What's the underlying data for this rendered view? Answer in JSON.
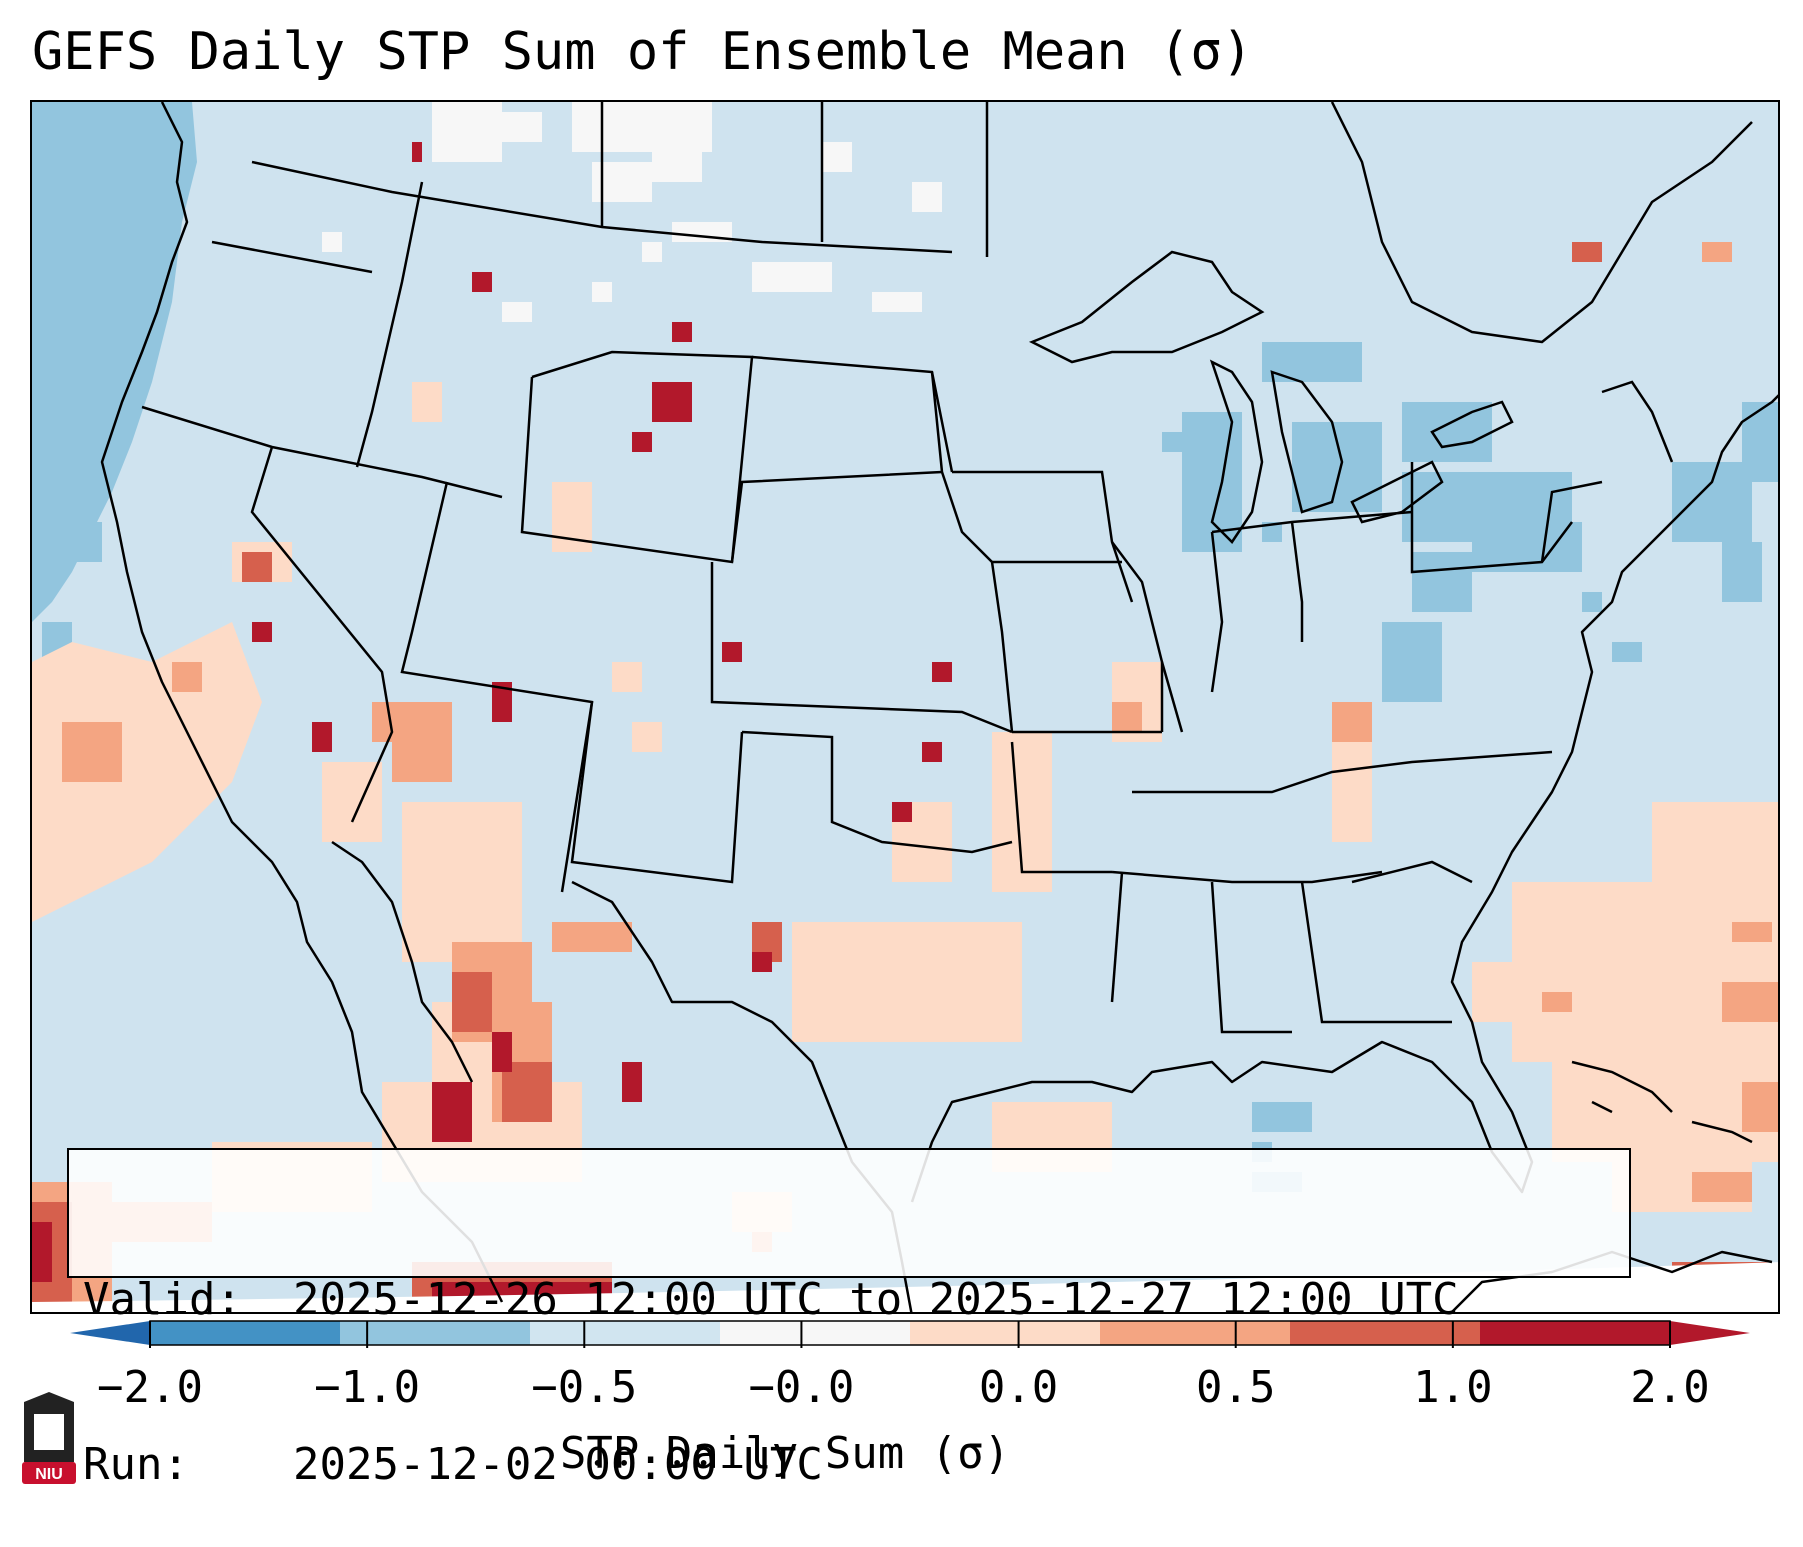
{
  "title": "GEFS Daily STP Sum of Ensemble Mean (σ)",
  "info": {
    "valid_label": "Valid:",
    "valid_value": "2025-12-26 12:00 UTC to 2025-12-27 12:00 UTC",
    "run_label": "Run:",
    "run_value": "2025-12-02 00:00 UTC"
  },
  "colorbar": {
    "label": "STP Daily Sum (σ)",
    "ticks": [
      "−2.0",
      "−1.0",
      "−0.5",
      "−0.0",
      "0.0",
      "0.5",
      "1.0",
      "2.0"
    ],
    "colors": [
      "#4392c5",
      "#92c5de",
      "#d1e5f0",
      "#f7f7f7",
      "#fddbc7",
      "#f4a582",
      "#d6604d",
      "#b2182b"
    ],
    "extend_low_color": "#2166ac",
    "extend_high_color": "#b2182b"
  },
  "map": {
    "background_color": "#cfe3ef",
    "ocean_low_color": "#92c5de",
    "region": "Continental United States"
  },
  "logo": {
    "text": "NIU",
    "color": "#c8102e"
  }
}
